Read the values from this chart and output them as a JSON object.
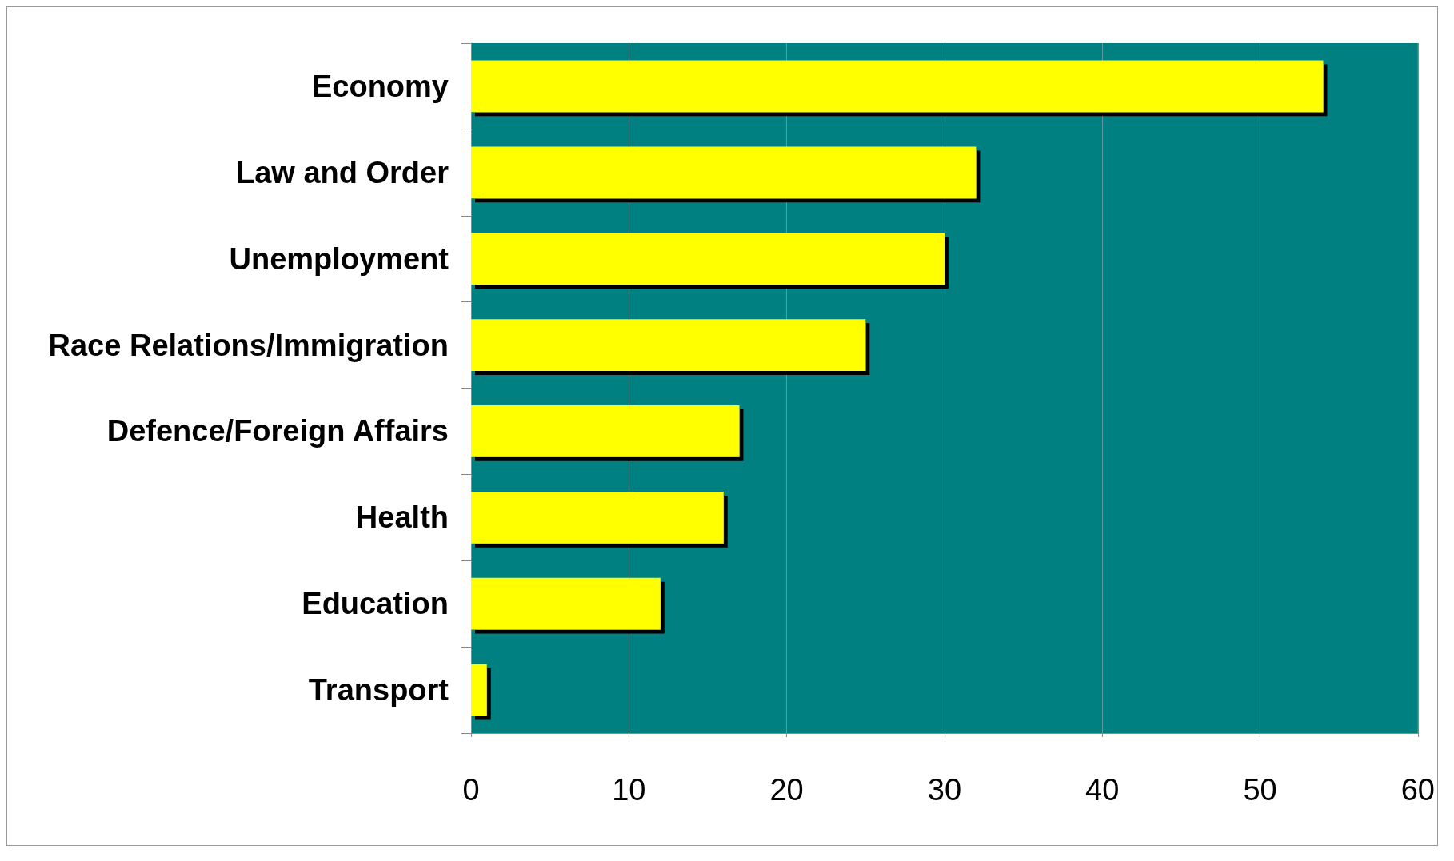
{
  "chart_data": {
    "type": "bar",
    "orientation": "horizontal",
    "categories": [
      "Economy",
      "Law and Order",
      "Unemployment",
      "Race Relations/Immigration",
      "Defence/Foreign Affairs",
      "Health",
      "Education",
      "Transport"
    ],
    "values": [
      54,
      32,
      30,
      25,
      17,
      16,
      12,
      1
    ],
    "color": "#ffff00",
    "xlim": [
      0,
      60
    ],
    "xticks": [
      0,
      10,
      20,
      30,
      40,
      50,
      60
    ],
    "grid": "x"
  }
}
